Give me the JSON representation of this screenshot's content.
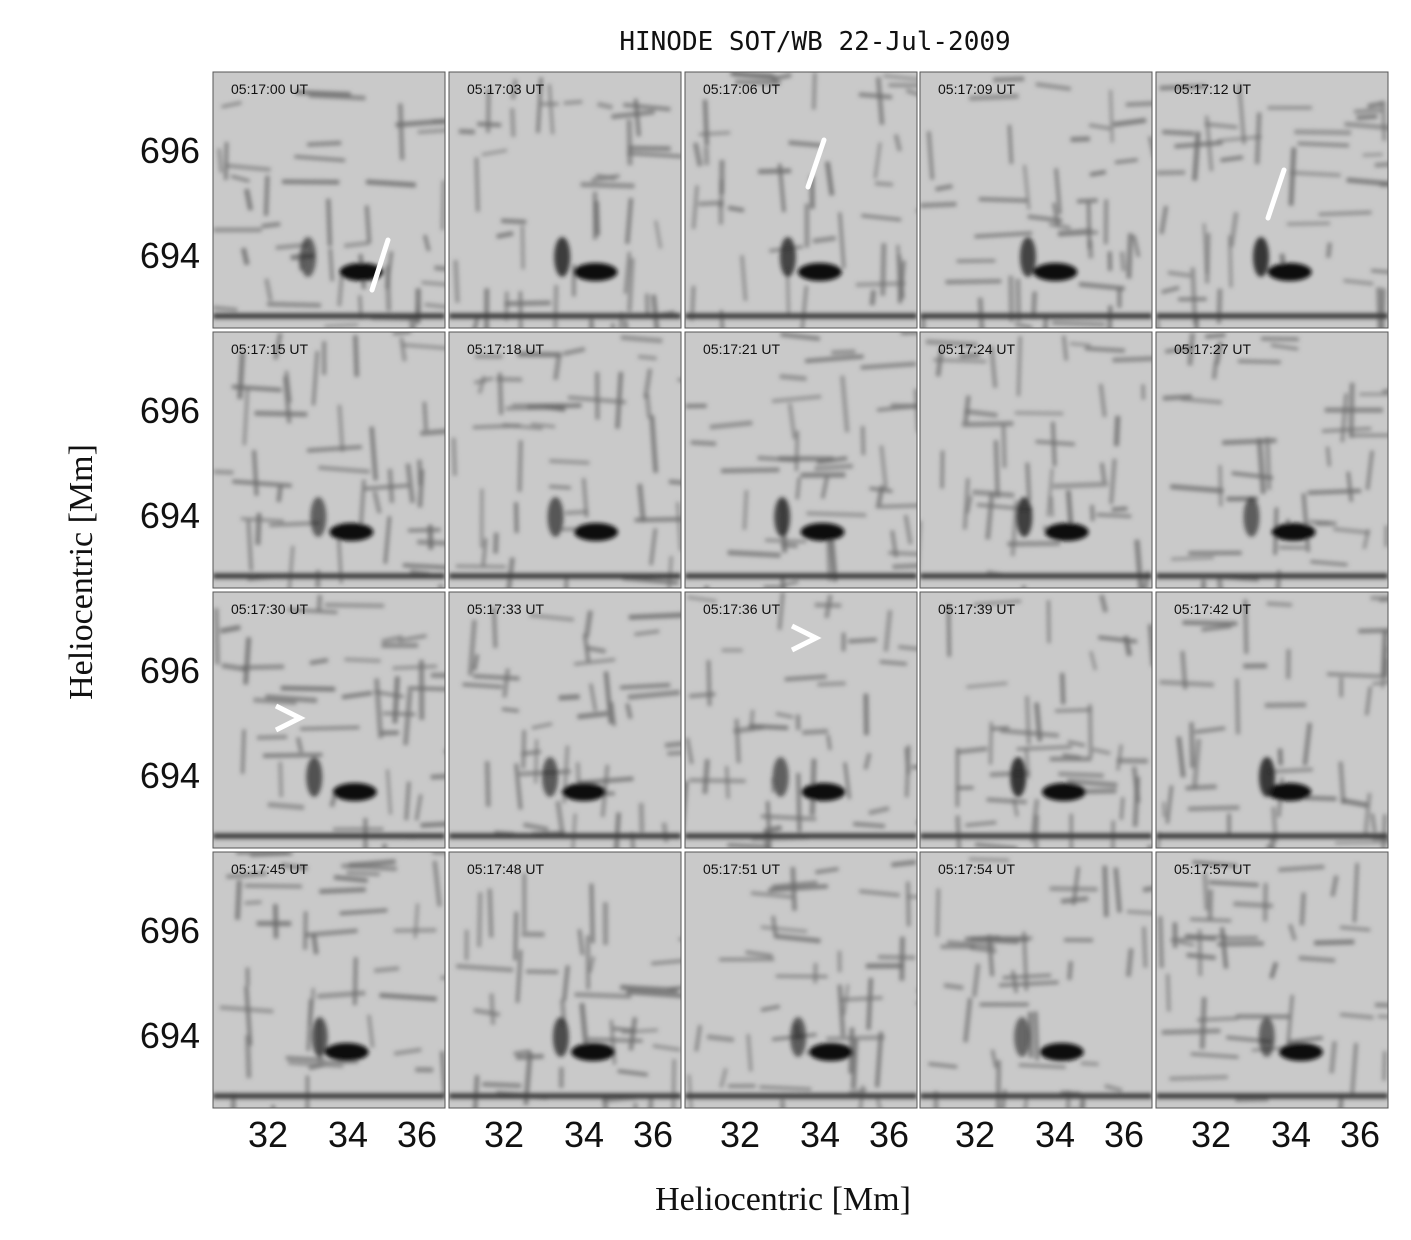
{
  "title": "HINODE SOT/WB 22-Jul-2009",
  "x_label": "Heliocentric [Mm]",
  "y_label": "Heliocentric [Mm]",
  "xticks": [
    32,
    34,
    36
  ],
  "yticks": [
    696,
    694
  ],
  "panels": [
    {
      "time": "05:17:00 UT"
    },
    {
      "time": "05:17:03 UT"
    },
    {
      "time": "05:17:06 UT"
    },
    {
      "time": "05:17:09 UT"
    },
    {
      "time": "05:17:12 UT"
    },
    {
      "time": "05:17:15 UT"
    },
    {
      "time": "05:17:18 UT"
    },
    {
      "time": "05:17:21 UT"
    },
    {
      "time": "05:17:24 UT"
    },
    {
      "time": "05:17:27 UT"
    },
    {
      "time": "05:17:30 UT"
    },
    {
      "time": "05:17:33 UT"
    },
    {
      "time": "05:17:36 UT"
    },
    {
      "time": "05:17:39 UT"
    },
    {
      "time": "05:17:42 UT"
    },
    {
      "time": "05:17:45 UT"
    },
    {
      "time": "05:17:48 UT"
    },
    {
      "time": "05:17:51 UT"
    },
    {
      "time": "05:17:54 UT"
    },
    {
      "time": "05:17:57 UT"
    }
  ]
}
